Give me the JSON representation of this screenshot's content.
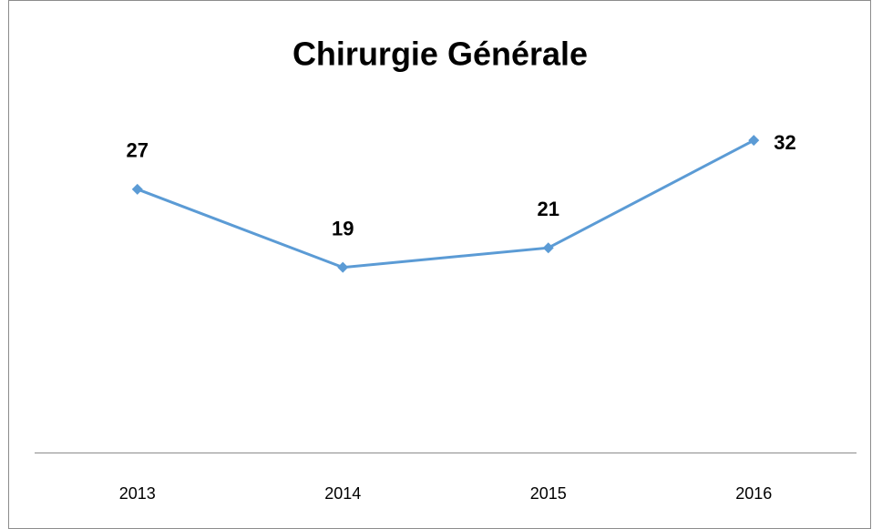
{
  "chart_data": {
    "type": "line",
    "title": "Chirurgie Générale",
    "categories": [
      "2013",
      "2014",
      "2015",
      "2016"
    ],
    "values": [
      27,
      19,
      21,
      32
    ],
    "color": "#5b9bd5",
    "ylim": [
      0,
      35
    ]
  }
}
